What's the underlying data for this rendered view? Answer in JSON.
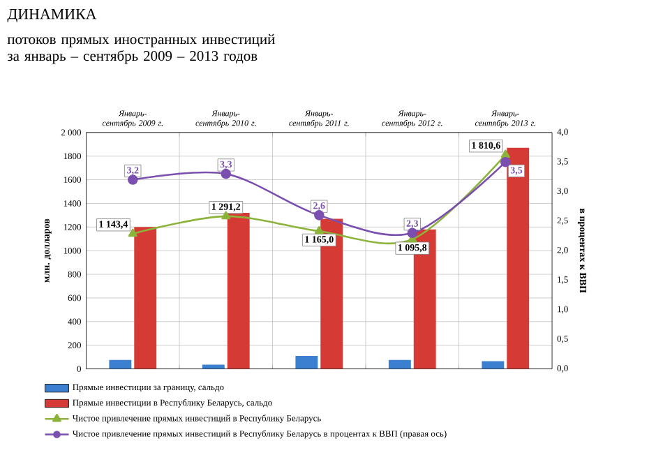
{
  "chart_data": {
    "type": "bar",
    "title": "ДИНАМИКА",
    "subtitle": "потоков прямых иностранных инвестиций за январь – сентябрь 2009 – 2013 годов",
    "ylabel": "млн. долларов",
    "y2label": "в процентах к ВВП",
    "categories": [
      "Январь-сентябрь 2009 г.",
      "Январь-сентябрь 2010 г.",
      "Январь-сентябрь 2011 г.",
      "Январь-сентябрь 2012 г.",
      "Январь-сентябрь 2013 г."
    ],
    "series": [
      {
        "name": "Прямые инвестиции за границу, сальдо",
        "color": "#3a7fd0",
        "values": [
          75,
          35,
          110,
          75,
          65
        ]
      },
      {
        "name": "Прямые инвестиции в Республику Беларусь, сальдо",
        "color": "#d63a35",
        "values": [
          1200,
          1320,
          1270,
          1180,
          1870
        ]
      },
      {
        "name": "Чистое привлечение прямых инвестиций в Республику Беларусь",
        "type": "line",
        "marker": "triangle",
        "color": "#8cb33a",
        "values": [
          1143.4,
          1291.2,
          1165.0,
          1095.8,
          1810.6
        ],
        "value_labels": [
          "1 143,4",
          "1 291,2",
          "1 165,0",
          "1 095,8",
          "1 810,6"
        ]
      },
      {
        "name": "Чистое привлечение прямых инвестиций в Республику Беларусь в процентах к ВВП (правая ось)",
        "type": "line",
        "marker": "circle",
        "axis": "y2",
        "color": "#7a4fb0",
        "values": [
          3.2,
          3.3,
          2.6,
          2.3,
          3.5
        ],
        "value_labels": [
          "3,2",
          "3,3",
          "2,6",
          "2,3",
          "3,5"
        ]
      }
    ],
    "ylim": [
      0,
      2000
    ],
    "yticks": [
      0,
      200,
      400,
      600,
      800,
      1000,
      1200,
      1400,
      1600,
      1800,
      {
        "value": 2000,
        "label": "2 000"
      }
    ],
    "y2lim": [
      0,
      4
    ],
    "y2ticks": [
      {
        "value": 0,
        "label": "0,0"
      },
      {
        "value": 0.5,
        "label": "0,5"
      },
      {
        "value": 1,
        "label": "1,0"
      },
      {
        "value": 1.5,
        "label": "1,5"
      },
      {
        "value": 2,
        "label": "2,0"
      },
      {
        "value": 2.5,
        "label": "2,5"
      },
      {
        "value": 3,
        "label": "3,0"
      },
      {
        "value": 3.5,
        "label": "3,5"
      },
      {
        "value": 4,
        "label": "4,0"
      }
    ],
    "grid": true,
    "legend": "bottom"
  }
}
